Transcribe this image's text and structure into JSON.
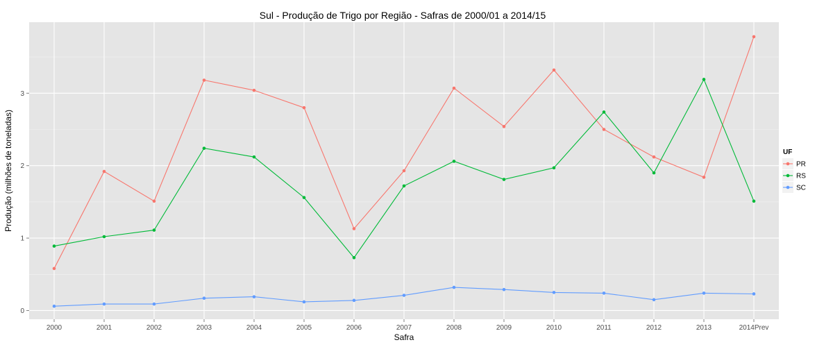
{
  "chart_data": {
    "type": "line",
    "title": "Sul  - Produção de Trigo por Região - Safras de 2000/01 a 2014/15",
    "xlabel": "Safra",
    "ylabel": "Produção (milhões de toneladas)",
    "categories": [
      "2000",
      "2001",
      "2002",
      "2003",
      "2004",
      "2005",
      "2006",
      "2007",
      "2008",
      "2009",
      "2010",
      "2011",
      "2012",
      "2013",
      "2014Prev"
    ],
    "ylim": [
      -0.12,
      3.98
    ],
    "yticks": [
      0,
      1,
      2,
      3
    ],
    "grid": true,
    "legend": {
      "title": "UF",
      "position": "right"
    },
    "series": [
      {
        "name": "PR",
        "color": "#F8766D",
        "values": [
          0.58,
          1.92,
          1.51,
          3.18,
          3.04,
          2.8,
          1.13,
          1.93,
          3.07,
          2.54,
          3.32,
          2.5,
          2.12,
          1.84,
          3.78
        ]
      },
      {
        "name": "RS",
        "color": "#00BA38",
        "values": [
          0.89,
          1.02,
          1.11,
          2.24,
          2.12,
          1.56,
          0.73,
          1.72,
          2.06,
          1.81,
          1.97,
          2.74,
          1.9,
          3.19,
          1.51
        ]
      },
      {
        "name": "SC",
        "color": "#619CFF",
        "values": [
          0.06,
          0.09,
          0.09,
          0.17,
          0.19,
          0.12,
          0.14,
          0.21,
          0.32,
          0.29,
          0.25,
          0.24,
          0.15,
          0.24,
          0.23
        ]
      }
    ]
  }
}
